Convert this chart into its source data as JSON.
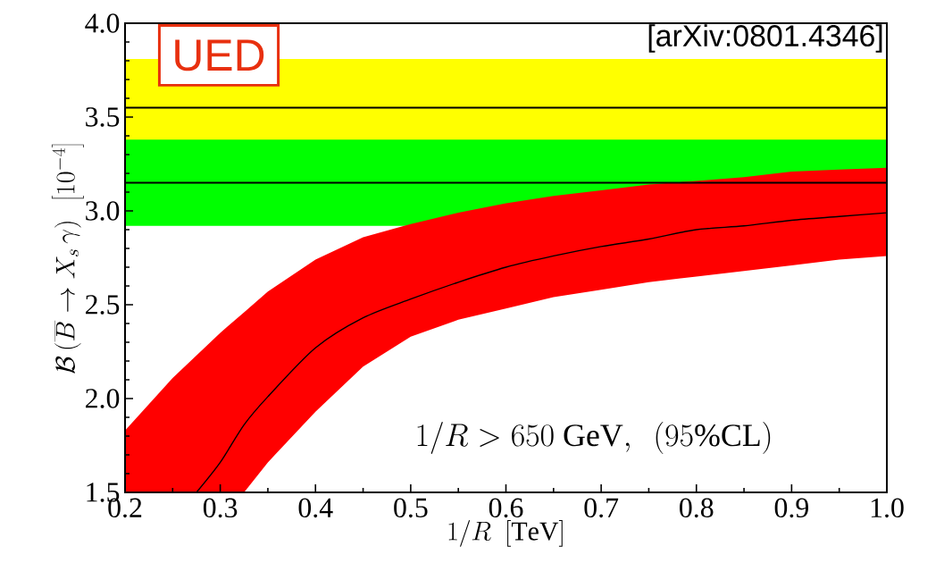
{
  "chart_data": {
    "type": "line",
    "xlabel": "1/R\\ \\ [\\mathrm{TeV}]",
    "ylabel": "\\mathcal{B}\\left(\\overline{B}\\to X_s\\,\\gamma\\right)\\ \\ \\left[10^{-4}\\right]",
    "annotations": [
      "UED",
      "[arXiv:0801.4346]",
      "1/R > 650\\ \\mathrm{GeV},\\ \\ (95\\%\\mathrm{CL})"
    ],
    "x": [
      0.2,
      0.25,
      0.275,
      0.3,
      0.325,
      0.35,
      0.4,
      0.45,
      0.5,
      0.55,
      0.6,
      0.65,
      0.7,
      0.75,
      0.8,
      0.85,
      0.9,
      0.95,
      1.0
    ],
    "series": [
      {
        "color": "#000000",
        "values": [
          null,
          null,
          1.5,
          1.66,
          1.86,
          2.01,
          2.27,
          2.43,
          2.53,
          2.62,
          2.7,
          2.76,
          2.81,
          2.85,
          2.9,
          2.92,
          2.95,
          2.97,
          2.99
        ],
        "upper": [
          1.83,
          2.11,
          2.23,
          2.35,
          2.46,
          2.57,
          2.74,
          2.86,
          2.93,
          2.99,
          3.04,
          3.08,
          3.11,
          3.14,
          3.16,
          3.18,
          3.21,
          3.22,
          3.23
        ],
        "lower": [
          1.5,
          1.5,
          1.5,
          1.5,
          1.5,
          1.66,
          1.93,
          2.17,
          2.33,
          2.42,
          2.48,
          2.54,
          2.58,
          2.62,
          2.65,
          2.68,
          2.71,
          2.74,
          2.76
        ]
      }
    ],
    "bands": [
      {
        "axis": "y",
        "from": 3.29,
        "to": 3.81,
        "color": "#ffff00"
      },
      {
        "axis": "y",
        "from": 2.92,
        "to": 3.38,
        "color": "#00ff00"
      }
    ],
    "ref_lines": [
      {
        "axis": "y",
        "value": 3.55,
        "color": "#000000"
      },
      {
        "axis": "y",
        "value": 3.15,
        "color": "#000000"
      }
    ],
    "xlim": [
      0.2,
      1.0
    ],
    "ylim": [
      1.5,
      4.0
    ],
    "xticks": [
      {
        "value": 0.2,
        "label": "0.2"
      },
      {
        "value": 0.3,
        "label": "0.3"
      },
      {
        "value": 0.4,
        "label": "0.4"
      },
      {
        "value": 0.5,
        "label": "0.5"
      },
      {
        "value": 0.6,
        "label": "0.6"
      },
      {
        "value": 0.7,
        "label": "0.7"
      },
      {
        "value": 0.8,
        "label": "0.8"
      },
      {
        "value": 0.9,
        "label": "0.9"
      },
      {
        "value": 1.0,
        "label": "1.0"
      }
    ],
    "yticks": [
      {
        "value": 1.5,
        "label": "1.5"
      },
      {
        "value": 2.0,
        "label": "2.0"
      },
      {
        "value": 2.5,
        "label": "2.5"
      },
      {
        "value": 3.0,
        "label": "3.0"
      },
      {
        "value": 3.5,
        "label": "3.5"
      },
      {
        "value": 4.0,
        "label": "4.0"
      }
    ],
    "grid": false,
    "marker": "none",
    "line_style": "solid"
  }
}
